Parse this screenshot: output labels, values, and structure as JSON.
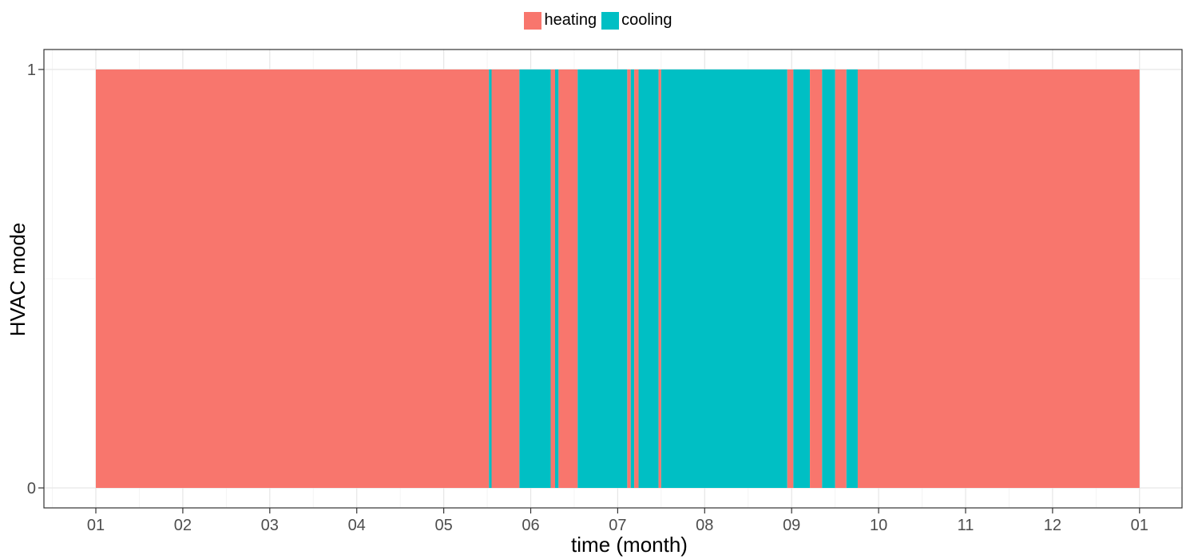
{
  "chart_data": {
    "type": "bar",
    "xlabel": "time (month)",
    "ylabel": "HVAC mode",
    "x_ticks": [
      "01",
      "02",
      "03",
      "04",
      "05",
      "06",
      "07",
      "08",
      "09",
      "10",
      "11",
      "12",
      "01"
    ],
    "y_ticks": [
      "0",
      "1"
    ],
    "ylim": [
      0,
      1
    ],
    "grid": true,
    "legend_position": "top",
    "legend": [
      {
        "name": "heating",
        "color": "#F8766D"
      },
      {
        "name": "cooling",
        "color": "#00BFC4"
      }
    ],
    "segments": [
      {
        "start": 0.0,
        "end": 4.52,
        "mode": "heating"
      },
      {
        "start": 4.52,
        "end": 4.55,
        "mode": "cooling"
      },
      {
        "start": 4.55,
        "end": 4.87,
        "mode": "heating"
      },
      {
        "start": 4.87,
        "end": 5.23,
        "mode": "cooling"
      },
      {
        "start": 5.23,
        "end": 5.28,
        "mode": "heating"
      },
      {
        "start": 5.28,
        "end": 5.32,
        "mode": "cooling"
      },
      {
        "start": 5.32,
        "end": 5.54,
        "mode": "heating"
      },
      {
        "start": 5.54,
        "end": 6.11,
        "mode": "cooling"
      },
      {
        "start": 6.11,
        "end": 6.15,
        "mode": "heating"
      },
      {
        "start": 6.15,
        "end": 6.19,
        "mode": "cooling"
      },
      {
        "start": 6.19,
        "end": 6.24,
        "mode": "heating"
      },
      {
        "start": 6.24,
        "end": 6.47,
        "mode": "cooling"
      },
      {
        "start": 6.47,
        "end": 6.5,
        "mode": "heating"
      },
      {
        "start": 6.5,
        "end": 7.95,
        "mode": "cooling"
      },
      {
        "start": 7.95,
        "end": 8.02,
        "mode": "heating"
      },
      {
        "start": 8.02,
        "end": 8.21,
        "mode": "cooling"
      },
      {
        "start": 8.21,
        "end": 8.35,
        "mode": "heating"
      },
      {
        "start": 8.35,
        "end": 8.5,
        "mode": "cooling"
      },
      {
        "start": 8.5,
        "end": 8.63,
        "mode": "heating"
      },
      {
        "start": 8.63,
        "end": 8.76,
        "mode": "cooling"
      },
      {
        "start": 8.76,
        "end": 12.0,
        "mode": "heating"
      }
    ]
  }
}
